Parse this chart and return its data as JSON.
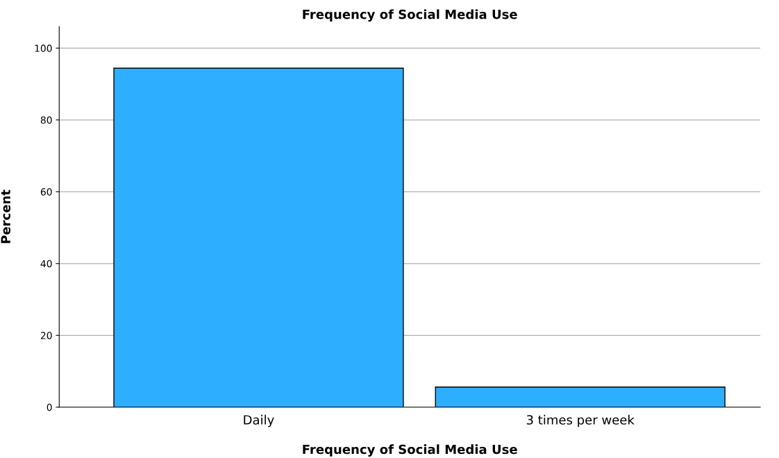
{
  "chart_data": {
    "type": "bar",
    "title": "Frequency of Social Media Use",
    "xlabel": "Frequency of Social Media Use",
    "ylabel": "Percent",
    "categories": [
      "Daily",
      "3 times per week"
    ],
    "values": [
      94.4,
      5.6
    ],
    "color": "#2eaefe",
    "ylim": [
      0,
      106
    ],
    "yticks": [
      0,
      20,
      40,
      60,
      80,
      100
    ],
    "grid": "y",
    "legend": false
  }
}
